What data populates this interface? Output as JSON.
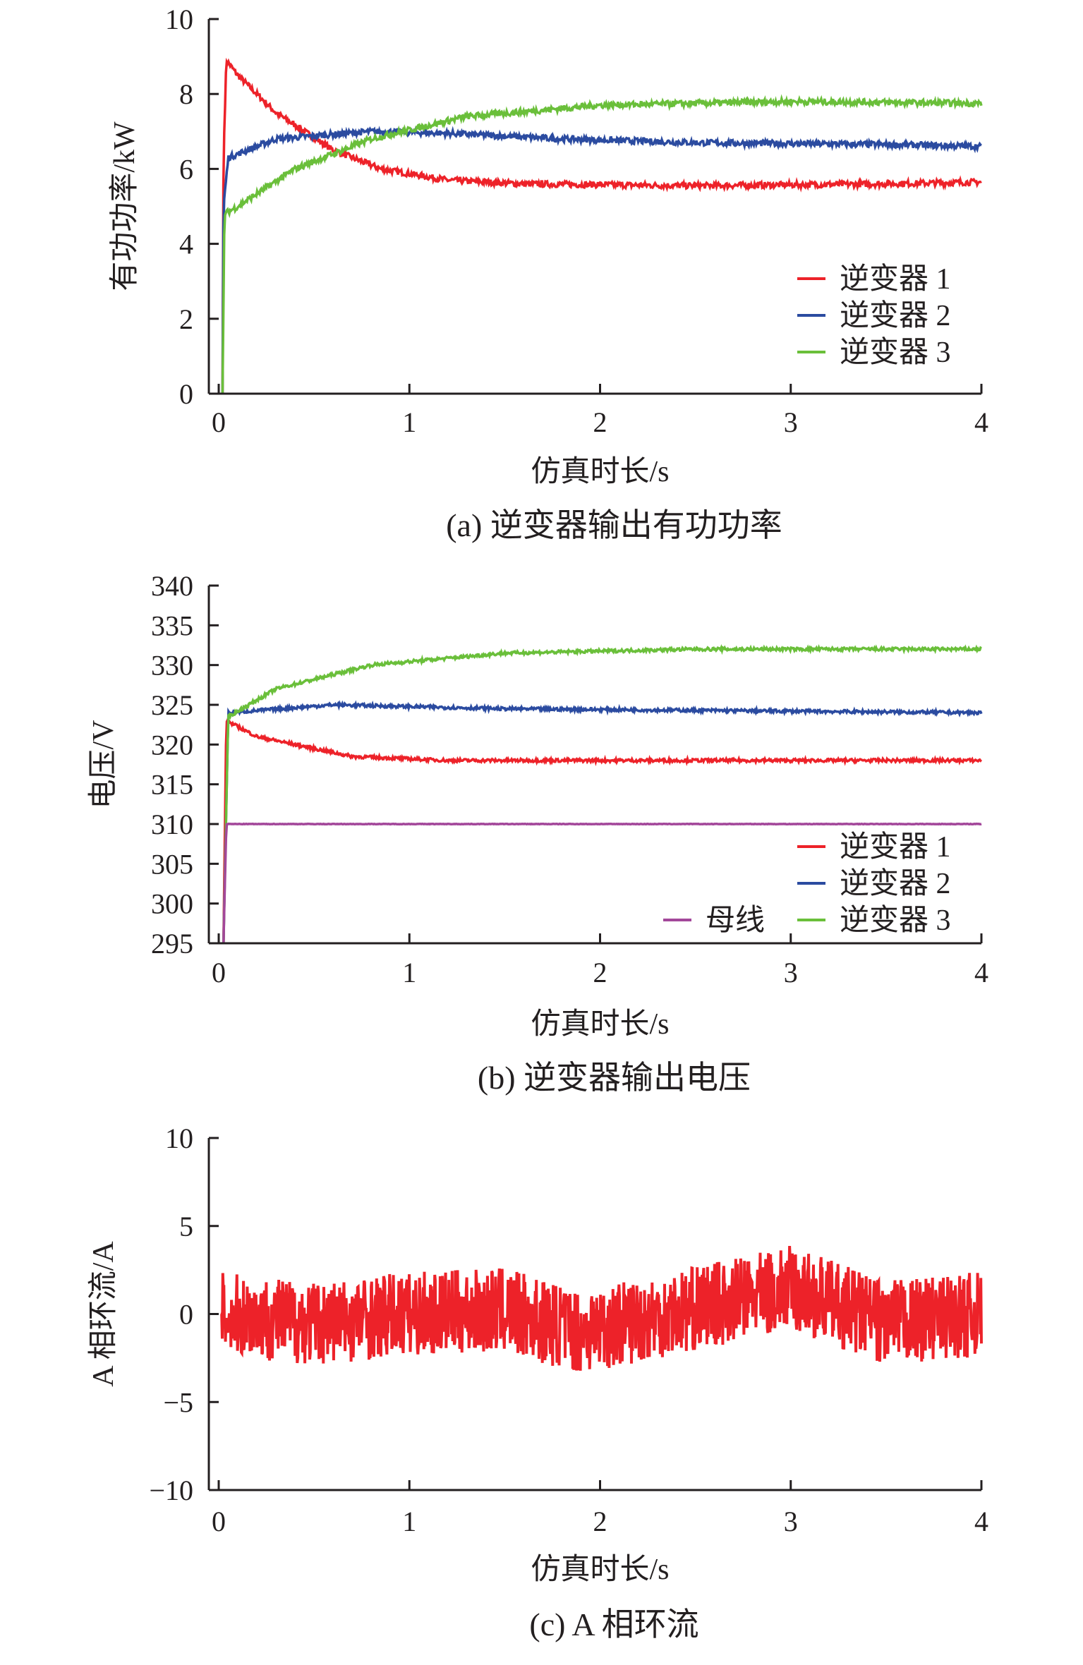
{
  "chart_data": [
    {
      "type": "line",
      "title": "(a) 逆变器输出有功功率",
      "xlabel": "仿真时长/s",
      "ylabel": "有功功率/kW",
      "xlim": [
        0,
        4
      ],
      "ylim": [
        0,
        10
      ],
      "xticks": [
        "0",
        "1",
        "2",
        "3",
        "4"
      ],
      "yticks": [
        "0",
        "2",
        "4",
        "6",
        "8",
        "10"
      ],
      "legend_position": "right-middle",
      "noise": 0.08,
      "series": [
        {
          "name": "逆变器 1",
          "color": "#ed2229",
          "points": [
            [
              0.02,
              0
            ],
            [
              0.025,
              6.3
            ],
            [
              0.04,
              8.9
            ],
            [
              0.1,
              8.5
            ],
            [
              0.3,
              7.5
            ],
            [
              0.6,
              6.5
            ],
            [
              0.85,
              6.0
            ],
            [
              1.2,
              5.7
            ],
            [
              1.6,
              5.6
            ],
            [
              2.5,
              5.55
            ],
            [
              3.5,
              5.6
            ],
            [
              4,
              5.65
            ]
          ]
        },
        {
          "name": "逆变器 2",
          "color": "#2b4ba0",
          "points": [
            [
              0.02,
              0
            ],
            [
              0.025,
              5.0
            ],
            [
              0.05,
              6.3
            ],
            [
              0.3,
              6.8
            ],
            [
              0.8,
              7.0
            ],
            [
              1.2,
              6.95
            ],
            [
              1.8,
              6.8
            ],
            [
              2.5,
              6.7
            ],
            [
              3.5,
              6.65
            ],
            [
              4,
              6.6
            ]
          ]
        },
        {
          "name": "逆变器 3",
          "color": "#6abf3a",
          "points": [
            [
              0.02,
              0
            ],
            [
              0.03,
              4.8
            ],
            [
              0.1,
              5.0
            ],
            [
              0.4,
              6.0
            ],
            [
              0.8,
              6.8
            ],
            [
              1.3,
              7.4
            ],
            [
              2.0,
              7.7
            ],
            [
              3.0,
              7.8
            ],
            [
              4,
              7.75
            ]
          ]
        }
      ]
    },
    {
      "type": "line",
      "title": "(b) 逆变器输出电压",
      "xlabel": "仿真时长/s",
      "ylabel": "电压/V",
      "xlim": [
        0,
        4
      ],
      "ylim": [
        295,
        340
      ],
      "xticks": [
        "0",
        "1",
        "2",
        "3",
        "4"
      ],
      "yticks": [
        "295",
        "300",
        "305",
        "310",
        "315",
        "320",
        "325",
        "330",
        "335",
        "340"
      ],
      "legend_position": "bottom-right",
      "noise": 0.2,
      "series": [
        {
          "name": "逆变器 1",
          "color": "#ed2229",
          "points": [
            [
              0.025,
              295
            ],
            [
              0.04,
              323
            ],
            [
              0.2,
              321
            ],
            [
              0.7,
              318.5
            ],
            [
              1.2,
              318
            ],
            [
              4,
              318
            ]
          ]
        },
        {
          "name": "逆变器 2",
          "color": "#2b4ba0",
          "points": [
            [
              0.025,
              295
            ],
            [
              0.05,
              324
            ],
            [
              0.6,
              325
            ],
            [
              1.5,
              324.5
            ],
            [
              4,
              324
            ]
          ]
        },
        {
          "name": "逆变器 3",
          "color": "#6abf3a",
          "points": [
            [
              0.025,
              295
            ],
            [
              0.05,
              323.5
            ],
            [
              0.3,
              327
            ],
            [
              0.8,
              330
            ],
            [
              1.5,
              331.5
            ],
            [
              2.5,
              332
            ],
            [
              4,
              332
            ]
          ]
        },
        {
          "name": "母线",
          "color": "#a3479a",
          "points": [
            [
              0.025,
              295
            ],
            [
              0.04,
              310
            ],
            [
              4,
              310
            ]
          ]
        }
      ]
    },
    {
      "type": "line",
      "title": "(c) A 相环流",
      "xlabel": "仿真时长/s",
      "ylabel": "A 相环流/A",
      "xlim": [
        0,
        4
      ],
      "ylim": [
        -10,
        10
      ],
      "xticks": [
        "0",
        "1",
        "2",
        "3",
        "4"
      ],
      "yticks": [
        "−10",
        "−5",
        "0",
        "5",
        "10"
      ],
      "noise": 2.4,
      "series": [
        {
          "name": "A 相环流",
          "color": "#ed2229",
          "points": [
            [
              0.01,
              0
            ],
            [
              0.5,
              -0.5
            ],
            [
              1.0,
              0
            ],
            [
              1.5,
              0.2
            ],
            [
              1.9,
              -1
            ],
            [
              2.5,
              0.3
            ],
            [
              3.0,
              1.5
            ],
            [
              3.5,
              -0.5
            ],
            [
              4,
              0
            ]
          ]
        }
      ]
    }
  ]
}
